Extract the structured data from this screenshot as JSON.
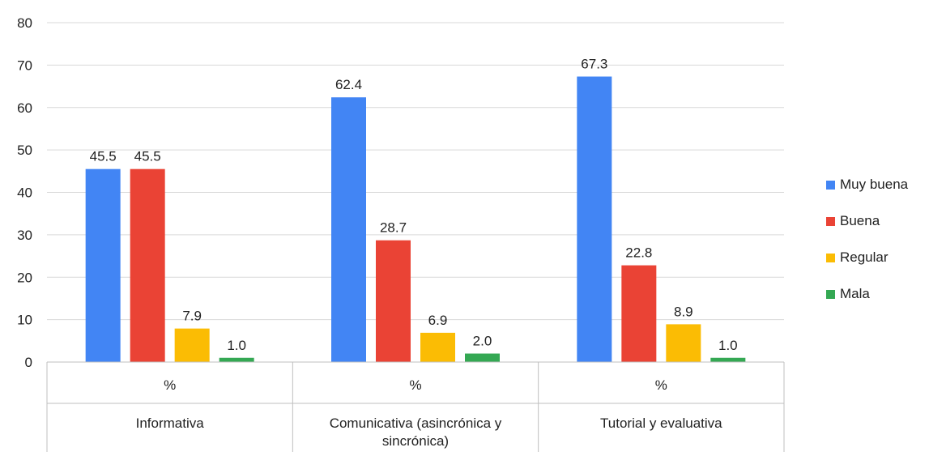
{
  "chart_data": {
    "type": "bar",
    "categories": [
      {
        "sub": "%",
        "group": "Informativa"
      },
      {
        "sub": "%",
        "group": "Comunicativa (asincrónica y sincrónica)"
      },
      {
        "sub": "%",
        "group": "Tutorial y evaluativa"
      }
    ],
    "series": [
      {
        "name": "Muy buena",
        "color": "#4285F4",
        "values": [
          45.5,
          62.4,
          67.3
        ],
        "labels": [
          "45.5",
          "62.4",
          "67.3"
        ]
      },
      {
        "name": "Buena",
        "color": "#EA4335",
        "values": [
          45.5,
          28.7,
          22.8
        ],
        "labels": [
          "45.5",
          "28.7",
          "22.8"
        ]
      },
      {
        "name": "Regular",
        "color": "#FBBC04",
        "values": [
          7.9,
          6.9,
          8.9
        ],
        "labels": [
          "7.9",
          "6.9",
          "8.9"
        ]
      },
      {
        "name": "Mala",
        "color": "#34A853",
        "values": [
          1.0,
          2.0,
          1.0
        ],
        "labels": [
          "1.0",
          "2.0",
          "1.0"
        ]
      }
    ],
    "ylim": [
      0,
      80
    ],
    "yticks": [
      "0",
      "10",
      "20",
      "30",
      "40",
      "50",
      "60",
      "70",
      "80"
    ],
    "grid": true,
    "legend_position": "right"
  }
}
